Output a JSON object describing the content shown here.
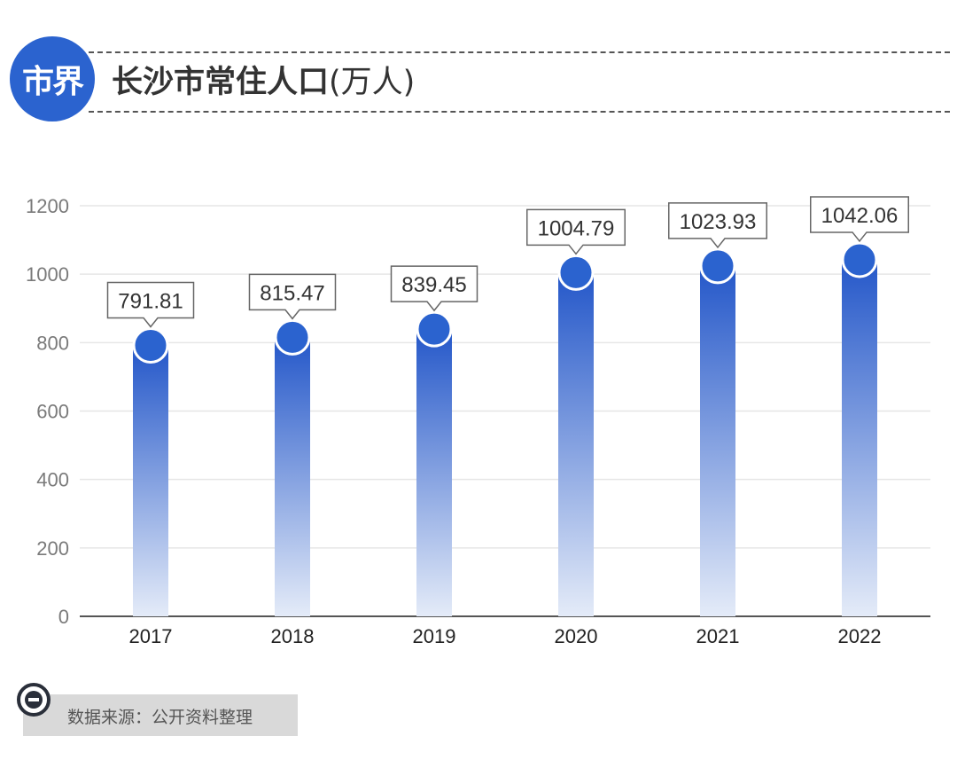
{
  "logo": {
    "text": "市界",
    "color": "#2b63cf"
  },
  "title": {
    "main": "长沙市常住人口",
    "unit": "(万人)"
  },
  "source": {
    "text": "数据来源：公开资料整理",
    "icon": "minus-circle-icon"
  },
  "chart_data": {
    "type": "bar",
    "categories": [
      "2017",
      "2018",
      "2019",
      "2020",
      "2021",
      "2022"
    ],
    "values": [
      791.81,
      815.47,
      839.45,
      1004.79,
      1023.93,
      1042.06
    ],
    "value_labels": [
      "791.81",
      "815.47",
      "839.45",
      "1004.79",
      "1023.93",
      "1042.06"
    ],
    "ylim": [
      0,
      1200
    ],
    "yticks": [
      0,
      200,
      400,
      600,
      800,
      1000,
      1200
    ],
    "grid": true,
    "bar_color": "#2b63cf"
  }
}
